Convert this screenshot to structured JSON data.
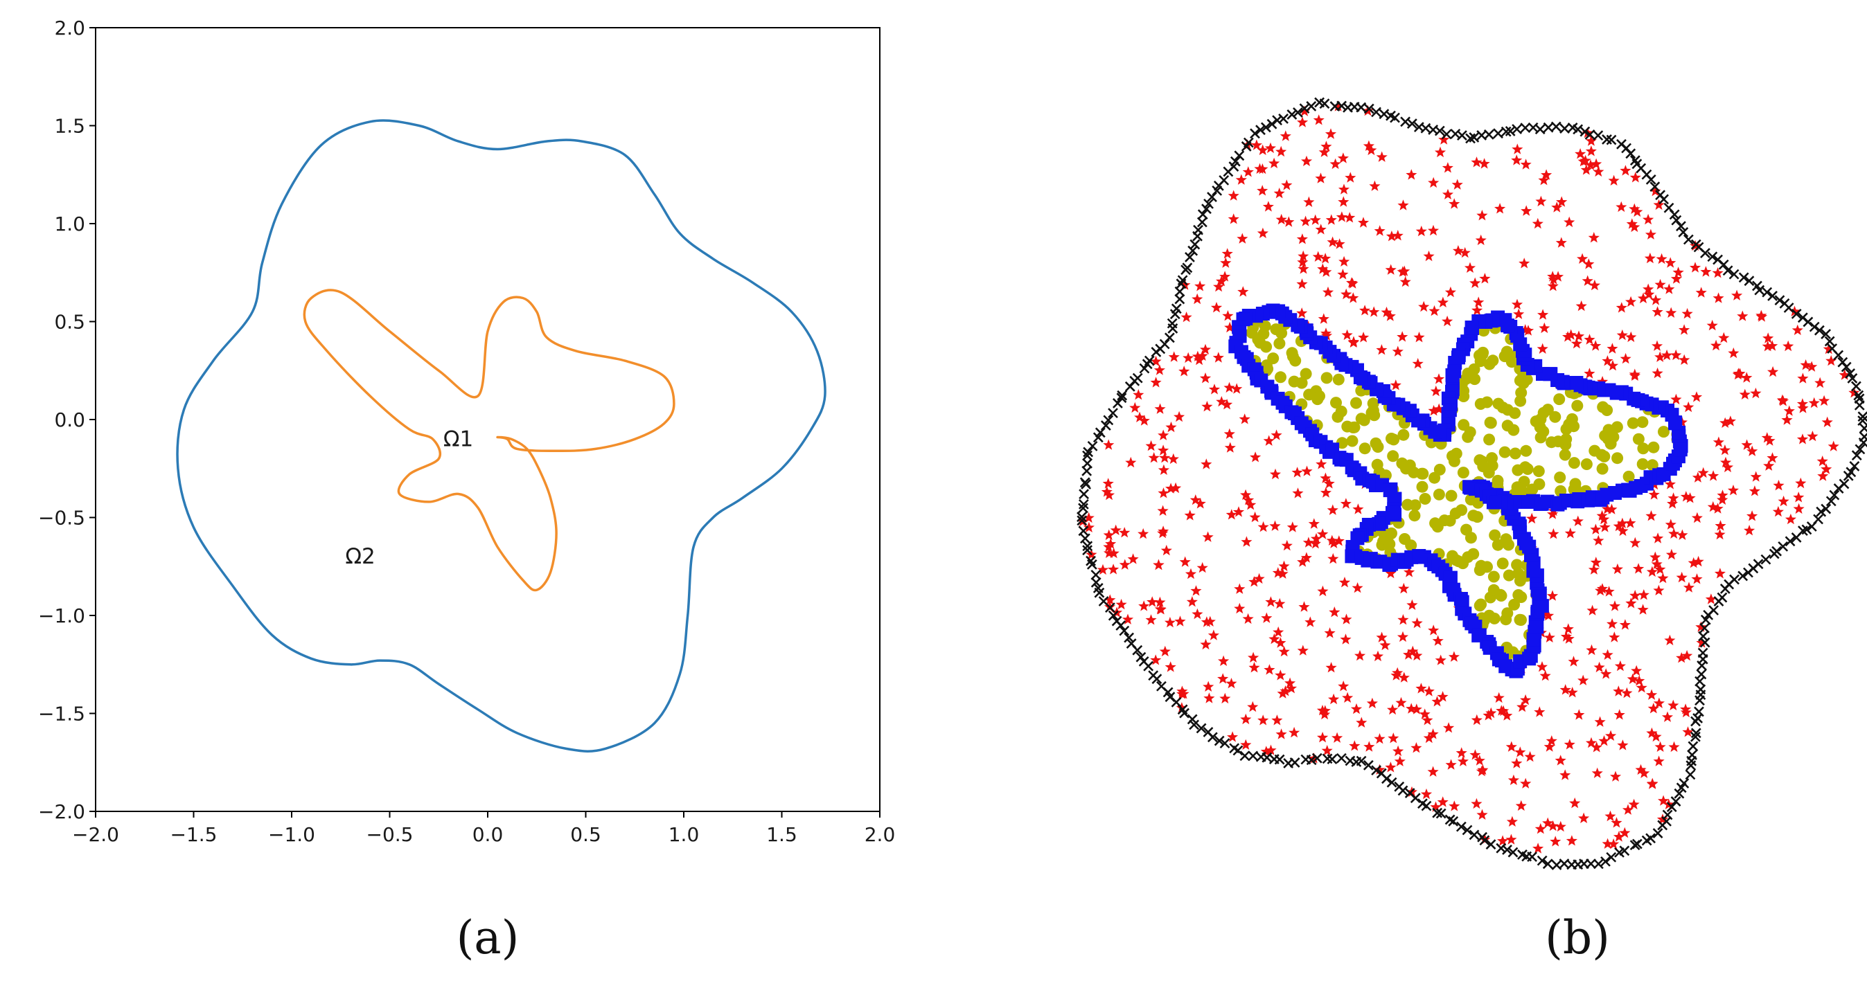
{
  "chart_data": [
    {
      "type": "line",
      "panel_label": "(a)",
      "xlim": [
        -2.0,
        2.0
      ],
      "ylim": [
        -2.0,
        2.0
      ],
      "xticks": [
        "−2.0",
        "−1.5",
        "−1.0",
        "−0.5",
        "0.0",
        "0.5",
        "1.0",
        "1.5",
        "2.0"
      ],
      "yticks": [
        "−2.0",
        "−1.5",
        "−1.0",
        "−0.5",
        "0.0",
        "0.5",
        "1.0",
        "1.5",
        "2.0"
      ],
      "grid": false,
      "series": [
        {
          "role": "outer boundary",
          "color": "#2c7bb6",
          "x": [
            1.72,
            1.68,
            1.55,
            1.35,
            1.15,
            0.98,
            0.85,
            0.7,
            0.48,
            0.3,
            0.05,
            -0.15,
            -0.35,
            -0.6,
            -0.85,
            -1.05,
            -1.15,
            -1.2,
            -1.4,
            -1.55,
            -1.58,
            -1.5,
            -1.3,
            -1.1,
            -0.9,
            -0.7,
            -0.55,
            -0.4,
            -0.25,
            -0.05,
            0.15,
            0.4,
            0.6,
            0.85,
            0.98,
            1.02,
            1.05,
            1.15,
            1.3,
            1.5,
            1.65,
            1.72
          ],
          "y": [
            0.12,
            0.35,
            0.55,
            0.7,
            0.82,
            0.95,
            1.15,
            1.35,
            1.42,
            1.42,
            1.38,
            1.42,
            1.5,
            1.52,
            1.4,
            1.1,
            0.8,
            0.55,
            0.3,
            0.05,
            -0.25,
            -0.55,
            -0.85,
            -1.1,
            -1.22,
            -1.25,
            -1.23,
            -1.25,
            -1.35,
            -1.48,
            -1.6,
            -1.68,
            -1.68,
            -1.55,
            -1.3,
            -1.0,
            -0.65,
            -0.5,
            -0.4,
            -0.25,
            -0.05,
            0.12
          ]
        },
        {
          "role": "interface",
          "color": "#f28e2b",
          "x": [
            0.95,
            0.9,
            0.7,
            0.45,
            0.3,
            0.25,
            0.18,
            0.08,
            0.0,
            -0.05,
            -0.25,
            -0.5,
            -0.75,
            -0.9,
            -0.93,
            -0.82,
            -0.6,
            -0.4,
            -0.28,
            -0.25,
            -0.4,
            -0.45,
            -0.3,
            -0.15,
            -0.05,
            0.05,
            0.18,
            0.25,
            0.32,
            0.35,
            0.32,
            0.26,
            0.2,
            0.12,
            0.05,
            0.1,
            0.15,
            0.35,
            0.55,
            0.75,
            0.9,
            0.95
          ],
          "y": [
            0.08,
            0.22,
            0.3,
            0.35,
            0.42,
            0.55,
            0.62,
            0.6,
            0.45,
            0.12,
            0.25,
            0.45,
            0.65,
            0.62,
            0.5,
            0.35,
            0.12,
            -0.05,
            -0.1,
            -0.2,
            -0.28,
            -0.38,
            -0.42,
            -0.38,
            -0.45,
            -0.65,
            -0.82,
            -0.87,
            -0.78,
            -0.58,
            -0.4,
            -0.25,
            -0.15,
            -0.1,
            -0.09,
            -0.1,
            -0.15,
            -0.16,
            -0.15,
            -0.1,
            -0.02,
            0.08
          ]
        }
      ],
      "annotations": [
        {
          "text": "Ω1",
          "x": -0.15,
          "y": -0.1
        },
        {
          "text": "Ω2",
          "x": -0.65,
          "y": -0.7
        }
      ]
    },
    {
      "type": "scatter",
      "panel_label": "(b)",
      "axes_visible": false,
      "series": [
        {
          "role": "outer boundary points",
          "marker": "x",
          "color": "#111111"
        },
        {
          "role": "interior points of Ω2",
          "marker": "star",
          "color": "#ee1111"
        },
        {
          "role": "interface points",
          "marker": "square",
          "color": "#1111ee"
        },
        {
          "role": "interior points of Ω1",
          "marker": "circle",
          "color": "#b5b500"
        }
      ]
    }
  ]
}
